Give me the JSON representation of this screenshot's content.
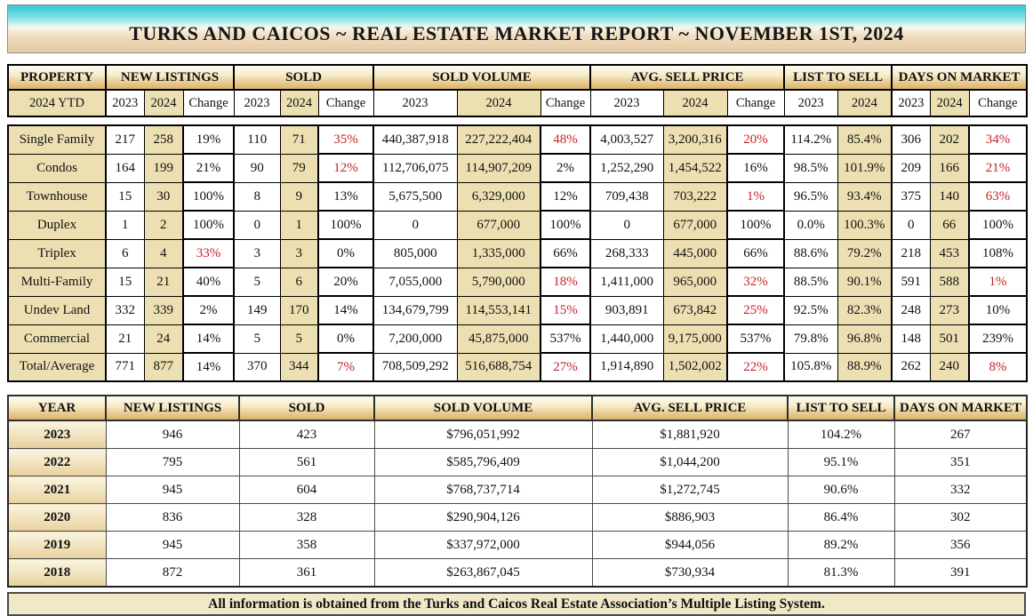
{
  "header": {
    "title": "TURKS AND CAICOS ~ REAL ESTATE MARKET REPORT ~ NOVEMBER 1ST, 2024"
  },
  "colors": {
    "accent_tan": "#ece0b2",
    "header_gold": "#d9b36c",
    "negative_red": "#c4222a",
    "water_teal": "#35c7d1",
    "sand": "#e7cba3"
  },
  "main_table": {
    "group_headers": [
      {
        "label": "PROPERTY",
        "span": 1
      },
      {
        "label": "NEW LISTINGS",
        "span": 3
      },
      {
        "label": "SOLD",
        "span": 3
      },
      {
        "label": "SOLD VOLUME",
        "span": 3
      },
      {
        "label": "AVG. SELL PRICE",
        "span": 3
      },
      {
        "label": "LIST TO SELL",
        "span": 2
      },
      {
        "label": "DAYS ON MARKET",
        "span": 3
      }
    ],
    "sub_headers": [
      "2024 YTD",
      "2023",
      "2024",
      "Change",
      "2023",
      "2024",
      "Change",
      "2023",
      "2024",
      "Change",
      "2023",
      "2024",
      "Change",
      "2023",
      "2024",
      "2023",
      "2024",
      "Change"
    ],
    "rows": [
      {
        "property": "Single Family",
        "cells": [
          "217",
          "258",
          "19%",
          "110",
          "71",
          "35%",
          "440,387,918",
          "227,222,404",
          "48%",
          "4,003,527",
          "3,200,316",
          "20%",
          "114.2%",
          "85.4%",
          "306",
          "202",
          "34%"
        ],
        "red": [
          5,
          8,
          11,
          16
        ]
      },
      {
        "property": "Condos",
        "cells": [
          "164",
          "199",
          "21%",
          "90",
          "79",
          "12%",
          "112,706,075",
          "114,907,209",
          "2%",
          "1,252,290",
          "1,454,522",
          "16%",
          "98.5%",
          "101.9%",
          "209",
          "166",
          "21%"
        ],
        "red": [
          5,
          16
        ]
      },
      {
        "property": "Townhouse",
        "cells": [
          "15",
          "30",
          "100%",
          "8",
          "9",
          "13%",
          "5,675,500",
          "6,329,000",
          "12%",
          "709,438",
          "703,222",
          "1%",
          "96.5%",
          "93.4%",
          "375",
          "140",
          "63%"
        ],
        "red": [
          11,
          16
        ]
      },
      {
        "property": "Duplex",
        "cells": [
          "1",
          "2",
          "100%",
          "0",
          "1",
          "100%",
          "0",
          "677,000",
          "100%",
          "0",
          "677,000",
          "100%",
          "0.0%",
          "100.3%",
          "0",
          "66",
          "100%"
        ],
        "red": []
      },
      {
        "property": "Triplex",
        "cells": [
          "6",
          "4",
          "33%",
          "3",
          "3",
          "0%",
          "805,000",
          "1,335,000",
          "66%",
          "268,333",
          "445,000",
          "66%",
          "88.6%",
          "79.2%",
          "218",
          "453",
          "108%"
        ],
        "red": [
          2
        ]
      },
      {
        "property": "Multi-Family",
        "cells": [
          "15",
          "21",
          "40%",
          "5",
          "6",
          "20%",
          "7,055,000",
          "5,790,000",
          "18%",
          "1,411,000",
          "965,000",
          "32%",
          "88.5%",
          "90.1%",
          "591",
          "588",
          "1%"
        ],
        "red": [
          8,
          11,
          16
        ]
      },
      {
        "property": "Undev Land",
        "cells": [
          "332",
          "339",
          "2%",
          "149",
          "170",
          "14%",
          "134,679,799",
          "114,553,141",
          "15%",
          "903,891",
          "673,842",
          "25%",
          "92.5%",
          "82.3%",
          "248",
          "273",
          "10%"
        ],
        "red": [
          8,
          11
        ]
      },
      {
        "property": "Commercial",
        "cells": [
          "21",
          "24",
          "14%",
          "5",
          "5",
          "0%",
          "7,200,000",
          "45,875,000",
          "537%",
          "1,440,000",
          "9,175,000",
          "537%",
          "79.8%",
          "96.8%",
          "148",
          "501",
          "239%"
        ],
        "red": []
      },
      {
        "property": "Total/Average",
        "cells": [
          "771",
          "877",
          "14%",
          "370",
          "344",
          "7%",
          "708,509,292",
          "516,688,754",
          "27%",
          "1,914,890",
          "1,502,002",
          "22%",
          "105.8%",
          "88.9%",
          "262",
          "240",
          "8%"
        ],
        "red": [
          5,
          8,
          11,
          16
        ]
      }
    ]
  },
  "yearly_table": {
    "headers": [
      "YEAR",
      "NEW LISTINGS",
      "SOLD",
      "SOLD VOLUME",
      "AVG. SELL PRICE",
      "LIST TO SELL",
      "DAYS ON MARKET"
    ],
    "rows": [
      [
        "2023",
        "946",
        "423",
        "$796,051,992",
        "$1,881,920",
        "104.2%",
        "267"
      ],
      [
        "2022",
        "795",
        "561",
        "$585,796,409",
        "$1,044,200",
        "95.1%",
        "351"
      ],
      [
        "2021",
        "945",
        "604",
        "$768,737,714",
        "$1,272,745",
        "90.6%",
        "332"
      ],
      [
        "2020",
        "836",
        "328",
        "$290,904,126",
        "$886,903",
        "86.4%",
        "302"
      ],
      [
        "2019",
        "945",
        "358",
        "$337,972,000",
        "$944,056",
        "89.2%",
        "356"
      ],
      [
        "2018",
        "872",
        "361",
        "$263,867,045",
        "$730,934",
        "81.3%",
        "391"
      ]
    ]
  },
  "footer": {
    "note": "All information is obtained from the Turks and Caicos Real Estate Association’s Multiple Listing System."
  }
}
